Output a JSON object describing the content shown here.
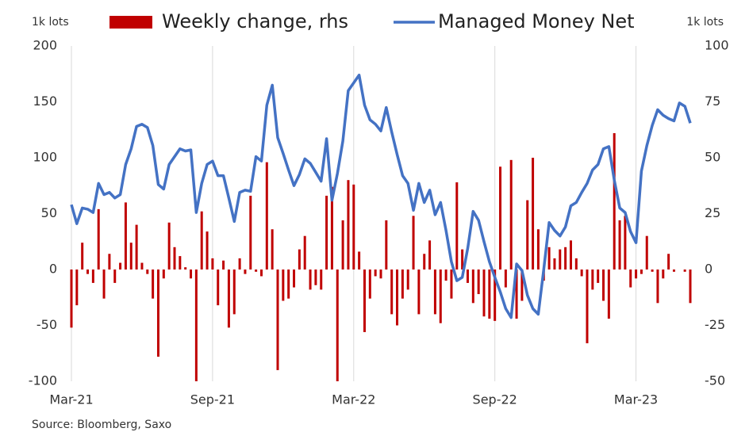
{
  "chart_data": {
    "type": "combo",
    "y_label": "1k lots",
    "y2_label": "1k lots",
    "source": "Source: Bloomberg, Saxo",
    "categories": [
      "Mar-21",
      null,
      null,
      null,
      null,
      null,
      null,
      null,
      null,
      null,
      null,
      null,
      null,
      null,
      null,
      null,
      null,
      null,
      null,
      null,
      null,
      null,
      null,
      null,
      null,
      null,
      "Sep-21",
      null,
      null,
      null,
      null,
      null,
      null,
      null,
      null,
      null,
      null,
      null,
      null,
      null,
      null,
      null,
      null,
      null,
      null,
      null,
      null,
      null,
      null,
      null,
      null,
      null,
      "Mar-22",
      null,
      null,
      null,
      null,
      null,
      null,
      null,
      null,
      null,
      null,
      null,
      null,
      null,
      null,
      null,
      null,
      null,
      null,
      null,
      null,
      null,
      null,
      null,
      null,
      null,
      "Sep-22",
      null,
      null,
      null,
      null,
      null,
      null,
      null,
      null,
      null,
      null,
      null,
      null,
      null,
      null,
      null,
      null,
      null,
      null,
      null,
      null,
      null,
      null,
      null,
      null,
      null,
      "Mar-23",
      null,
      null,
      null,
      null,
      null,
      null,
      null,
      null,
      null,
      null
    ],
    "series": [
      {
        "name": "Weekly change, rhs",
        "type": "bar",
        "axis": "y2",
        "color": "#c00000",
        "values": [
          -26,
          -16,
          12,
          -2,
          -6,
          27,
          -13,
          7,
          -6,
          3,
          30,
          12,
          20,
          3,
          -2,
          -13,
          -39,
          -4,
          21,
          10,
          6,
          1,
          -4,
          -50,
          26,
          17,
          5,
          -16,
          4,
          -26,
          -20,
          5,
          -2,
          33,
          -1,
          -3,
          48,
          18,
          -45,
          -14,
          -13,
          -8,
          9,
          15,
          -9,
          -7,
          -9,
          33,
          37,
          -50,
          22,
          40,
          38,
          8,
          -28,
          -13,
          -3,
          -4,
          22,
          -20,
          -25,
          -13,
          -9,
          24,
          -20,
          7,
          13,
          -20,
          -24,
          -5,
          -13,
          39,
          9,
          -6,
          -15,
          -11,
          -21,
          -22,
          -23,
          46,
          -8,
          49,
          -22,
          -14,
          31,
          50,
          18,
          -5,
          10,
          5,
          9,
          10,
          13,
          5,
          -3,
          -33,
          -9,
          -6,
          -14,
          -22,
          61,
          22,
          24,
          -8,
          -4,
          -2,
          15,
          -1,
          -15,
          -4,
          7,
          -1,
          0,
          -1,
          -15
        ]
      },
      {
        "name": "Managed Money Net",
        "type": "line",
        "color": "#4472c4",
        "values": [
          58,
          41,
          55,
          54,
          51,
          77,
          67,
          69,
          64,
          67,
          94,
          108,
          128,
          130,
          127,
          111,
          76,
          72,
          94,
          101,
          108,
          106,
          107,
          51,
          77,
          94,
          97,
          84,
          84,
          64,
          43,
          69,
          71,
          70,
          101,
          97,
          147,
          165,
          118,
          104,
          89,
          75,
          85,
          99,
          95,
          87,
          79,
          117,
          62,
          86,
          115,
          160,
          167,
          174,
          147,
          134,
          130,
          124,
          145,
          123,
          103,
          84,
          77,
          53,
          77,
          60,
          71,
          49,
          60,
          35,
          7,
          -10,
          -7,
          19,
          52,
          44,
          25,
          7,
          -7,
          -20,
          -35,
          -43,
          5,
          -1,
          -23,
          -35,
          -40,
          0,
          42,
          35,
          30,
          38,
          57,
          60,
          69,
          77,
          89,
          94,
          108,
          110,
          80,
          55,
          51,
          34,
          24,
          88,
          111,
          129,
          143,
          138,
          135,
          133,
          149,
          146,
          131
        ]
      }
    ],
    "ylim": [
      -100,
      200
    ],
    "yticks": [
      -100,
      -50,
      0,
      50,
      100,
      150,
      200
    ],
    "y2lim": [
      -50,
      100
    ],
    "y2ticks": [
      -50,
      -25,
      0,
      25,
      50,
      75,
      100
    ],
    "grid": "x"
  }
}
